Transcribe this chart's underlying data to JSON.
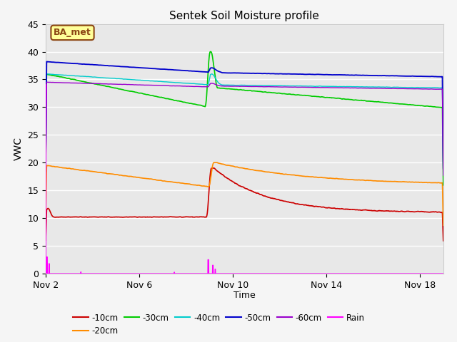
{
  "title": "Sentek Soil Moisture profile",
  "xlabel": "Time",
  "ylabel": "VWC",
  "ylim": [
    0,
    45
  ],
  "background_color": "#e8e8e8",
  "grid_color": "#ffffff",
  "annotation_text": "BA_met",
  "annotation_bg": "#ffff99",
  "annotation_border": "#8B4513",
  "xtick_labels": [
    "Nov 2",
    "Nov 6",
    "Nov 10",
    "Nov 14",
    "Nov 18"
  ],
  "ytick_positions": [
    0,
    5,
    10,
    15,
    20,
    25,
    30,
    35,
    40,
    45
  ],
  "series_colors": {
    "-10cm": "#cc0000",
    "-20cm": "#ff8c00",
    "-30cm": "#00cc00",
    "-40cm": "#00cccc",
    "-50cm": "#0000cc",
    "-60cm": "#9900cc",
    "Rain": "#ff00ff"
  }
}
